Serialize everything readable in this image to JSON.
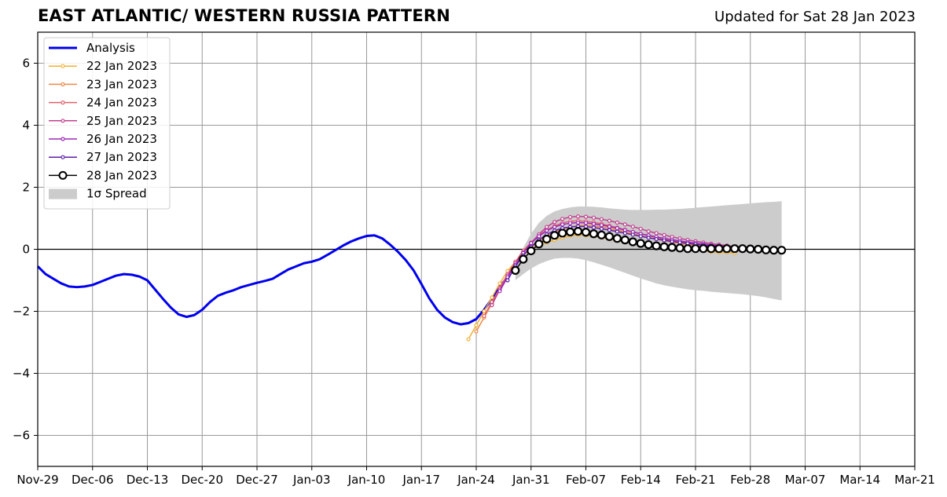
{
  "header": {
    "title": "EAST ATLANTIC/ WESTERN RUSSIA PATTERN",
    "updated": "Updated for Sat 28 Jan 2023"
  },
  "chart_data": {
    "type": "line",
    "title": "EAST ATLANTIC/ WESTERN RUSSIA PATTERN",
    "xlabel": "",
    "ylabel": "",
    "x_unit": "days since Nov-29",
    "xlim": [
      0,
      112
    ],
    "ylim": [
      -7,
      7
    ],
    "grid": true,
    "legend_position": "top-left",
    "x_ticks": [
      {
        "x": 0,
        "label": "Nov-29"
      },
      {
        "x": 7,
        "label": "Dec-06"
      },
      {
        "x": 14,
        "label": "Dec-13"
      },
      {
        "x": 21,
        "label": "Dec-20"
      },
      {
        "x": 28,
        "label": "Dec-27"
      },
      {
        "x": 35,
        "label": "Jan-03"
      },
      {
        "x": 42,
        "label": "Jan-10"
      },
      {
        "x": 49,
        "label": "Jan-17"
      },
      {
        "x": 56,
        "label": "Jan-24"
      },
      {
        "x": 63,
        "label": "Jan-31"
      },
      {
        "x": 70,
        "label": "Feb-07"
      },
      {
        "x": 77,
        "label": "Feb-14"
      },
      {
        "x": 84,
        "label": "Feb-21"
      },
      {
        "x": 91,
        "label": "Feb-28"
      },
      {
        "x": 98,
        "label": "Mar-07"
      },
      {
        "x": 105,
        "label": "Mar-14"
      },
      {
        "x": 112,
        "label": "Mar-21"
      }
    ],
    "y_ticks": [
      {
        "y": -6,
        "label": "−6"
      },
      {
        "y": -4,
        "label": "−4"
      },
      {
        "y": -2,
        "label": "−2"
      },
      {
        "y": 0,
        "label": "0"
      },
      {
        "y": 2,
        "label": "2"
      },
      {
        "y": 4,
        "label": "4"
      },
      {
        "y": 6,
        "label": "6"
      }
    ],
    "analysis": {
      "name": "Analysis",
      "color": "#0000ee",
      "x": [
        0,
        1,
        2,
        3,
        4,
        5,
        6,
        7,
        8,
        9,
        10,
        11,
        12,
        13,
        14,
        15,
        16,
        17,
        18,
        19,
        20,
        21,
        22,
        23,
        24,
        25,
        26,
        27,
        28,
        29,
        30,
        31,
        32,
        33,
        34,
        35,
        36,
        37,
        38,
        39,
        40,
        41,
        42,
        43,
        44,
        45,
        46,
        47,
        48,
        49,
        50,
        51,
        52,
        53,
        54,
        55,
        56,
        57,
        58,
        59,
        60
      ],
      "y": [
        -0.55,
        -0.8,
        -0.95,
        -1.1,
        -1.2,
        -1.22,
        -1.2,
        -1.15,
        -1.05,
        -0.95,
        -0.85,
        -0.8,
        -0.82,
        -0.88,
        -1.0,
        -1.3,
        -1.6,
        -1.88,
        -2.1,
        -2.18,
        -2.12,
        -1.95,
        -1.7,
        -1.5,
        -1.4,
        -1.32,
        -1.22,
        -1.15,
        -1.08,
        -1.02,
        -0.95,
        -0.8,
        -0.65,
        -0.55,
        -0.45,
        -0.4,
        -0.32,
        -0.18,
        -0.03,
        0.12,
        0.25,
        0.35,
        0.43,
        0.45,
        0.35,
        0.15,
        -0.08,
        -0.35,
        -0.68,
        -1.12,
        -1.58,
        -1.95,
        -2.2,
        -2.35,
        -2.42,
        -2.38,
        -2.25,
        -1.95,
        -1.6,
        -1.2,
        -0.9
      ]
    },
    "forecasts": [
      {
        "name": "22 Jan 2023",
        "color": "#f2b135",
        "x": [
          55,
          56,
          57,
          58,
          59,
          60,
          61,
          62,
          63,
          64,
          65,
          66,
          67,
          68,
          69,
          70,
          71,
          72,
          73,
          74,
          75,
          76,
          77,
          78,
          79,
          80,
          81,
          82,
          83,
          84,
          85,
          86,
          87,
          88,
          89
        ],
        "y": [
          -2.9,
          -2.45,
          -2.0,
          -1.55,
          -1.1,
          -0.7,
          -0.4,
          -0.18,
          -0.02,
          0.12,
          0.22,
          0.3,
          0.38,
          0.44,
          0.46,
          0.45,
          0.42,
          0.38,
          0.33,
          0.28,
          0.24,
          0.2,
          0.16,
          0.12,
          0.09,
          0.06,
          0.04,
          0.02,
          0.0,
          -0.02,
          -0.05,
          -0.08,
          -0.1,
          -0.1,
          -0.12
        ]
      },
      {
        "name": "23 Jan 2023",
        "color": "#ee8844",
        "x": [
          56,
          57,
          58,
          59,
          60,
          61,
          62,
          63,
          64,
          65,
          66,
          67,
          68,
          69,
          70,
          71,
          72,
          73,
          74,
          75,
          76,
          77,
          78,
          79,
          80,
          81,
          82,
          83,
          84,
          85,
          86,
          87,
          88,
          89,
          90
        ],
        "y": [
          -2.65,
          -2.2,
          -1.75,
          -1.3,
          -0.85,
          -0.48,
          -0.2,
          0.05,
          0.25,
          0.42,
          0.55,
          0.65,
          0.72,
          0.76,
          0.77,
          0.75,
          0.72,
          0.67,
          0.62,
          0.56,
          0.5,
          0.44,
          0.38,
          0.33,
          0.28,
          0.23,
          0.19,
          0.15,
          0.12,
          0.08,
          0.05,
          0.03,
          0.0,
          -0.03,
          -0.05
        ]
      },
      {
        "name": "24 Jan 2023",
        "color": "#e0606e",
        "x": [
          57,
          58,
          59,
          60,
          61,
          62,
          63,
          64,
          65,
          66,
          67,
          68,
          69,
          70,
          71,
          72,
          73,
          74,
          75,
          76,
          77,
          78,
          79,
          80,
          81,
          82,
          83,
          84,
          85,
          86,
          87,
          88,
          89,
          90,
          91
        ],
        "y": [
          -2.15,
          -1.7,
          -1.25,
          -0.8,
          -0.4,
          -0.05,
          0.22,
          0.45,
          0.62,
          0.75,
          0.85,
          0.9,
          0.92,
          0.9,
          0.87,
          0.82,
          0.76,
          0.7,
          0.63,
          0.56,
          0.5,
          0.44,
          0.38,
          0.33,
          0.28,
          0.24,
          0.2,
          0.16,
          0.13,
          0.1,
          0.07,
          0.05,
          0.03,
          0.01,
          0.0
        ]
      },
      {
        "name": "25 Jan 2023",
        "color": "#c0408e",
        "x": [
          58,
          59,
          60,
          61,
          62,
          63,
          64,
          65,
          66,
          67,
          68,
          69,
          70,
          71,
          72,
          73,
          74,
          75,
          76,
          77,
          78,
          79,
          80,
          81,
          82,
          83,
          84,
          85,
          86,
          87,
          88,
          89,
          90,
          91,
          92
        ],
        "y": [
          -1.8,
          -1.3,
          -0.85,
          -0.45,
          -0.1,
          0.2,
          0.48,
          0.72,
          0.88,
          0.98,
          1.04,
          1.06,
          1.05,
          1.02,
          0.97,
          0.92,
          0.86,
          0.8,
          0.73,
          0.66,
          0.58,
          0.52,
          0.46,
          0.4,
          0.35,
          0.3,
          0.26,
          0.22,
          0.18,
          0.15,
          0.12,
          0.09,
          0.07,
          0.05,
          0.03
        ]
      },
      {
        "name": "26 Jan 2023",
        "color": "#9e28b4",
        "x": [
          59,
          60,
          61,
          62,
          63,
          64,
          65,
          66,
          67,
          68,
          69,
          70,
          71,
          72,
          73,
          74,
          75,
          76,
          77,
          78,
          79,
          80,
          81,
          82,
          83,
          84,
          85,
          86,
          87,
          88,
          89,
          90,
          91,
          92,
          93
        ],
        "y": [
          -1.35,
          -0.9,
          -0.5,
          -0.12,
          0.2,
          0.42,
          0.6,
          0.72,
          0.8,
          0.84,
          0.86,
          0.85,
          0.82,
          0.78,
          0.73,
          0.68,
          0.62,
          0.56,
          0.5,
          0.45,
          0.4,
          0.35,
          0.31,
          0.27,
          0.23,
          0.2,
          0.17,
          0.14,
          0.12,
          0.1,
          0.08,
          0.06,
          0.05,
          0.04,
          0.03
        ]
      },
      {
        "name": "27 Jan 2023",
        "color": "#5a1ea8",
        "x": [
          60,
          61,
          62,
          63,
          64,
          65,
          66,
          67,
          68,
          69,
          70,
          71,
          72,
          73,
          74,
          75,
          76,
          77,
          78,
          79,
          80,
          81,
          82,
          83,
          84,
          85,
          86,
          87,
          88,
          89,
          90,
          91,
          92,
          93,
          94
        ],
        "y": [
          -1.0,
          -0.55,
          -0.2,
          0.08,
          0.3,
          0.48,
          0.6,
          0.68,
          0.72,
          0.74,
          0.73,
          0.7,
          0.66,
          0.62,
          0.57,
          0.52,
          0.47,
          0.42,
          0.37,
          0.33,
          0.29,
          0.25,
          0.22,
          0.19,
          0.16,
          0.13,
          0.11,
          0.09,
          0.07,
          0.06,
          0.05,
          0.04,
          0.03,
          0.02,
          0.02
        ]
      }
    ],
    "latest": {
      "name": "28 Jan 2023",
      "color": "#000000",
      "x": [
        61,
        62,
        63,
        64,
        65,
        66,
        67,
        68,
        69,
        70,
        71,
        72,
        73,
        74,
        75,
        76,
        77,
        78,
        79,
        80,
        81,
        82,
        83,
        84,
        85,
        86,
        87,
        88,
        89,
        90,
        91,
        92,
        93,
        94,
        95
      ],
      "y": [
        -0.68,
        -0.32,
        -0.05,
        0.17,
        0.33,
        0.45,
        0.52,
        0.56,
        0.58,
        0.55,
        0.5,
        0.46,
        0.41,
        0.35,
        0.3,
        0.24,
        0.19,
        0.15,
        0.11,
        0.08,
        0.06,
        0.04,
        0.02,
        0.02,
        0.02,
        0.02,
        0.02,
        0.02,
        0.02,
        0.02,
        0.01,
        0.0,
        -0.02,
        -0.03,
        -0.03
      ]
    },
    "spread": {
      "name": "1σ Spread",
      "color": "#cccccc",
      "x": [
        61,
        62,
        63,
        64,
        65,
        66,
        67,
        68,
        69,
        70,
        71,
        72,
        73,
        74,
        75,
        76,
        77,
        78,
        79,
        80,
        81,
        82,
        83,
        84,
        85,
        86,
        87,
        88,
        89,
        90,
        91,
        92,
        93,
        94,
        95
      ],
      "upper": [
        -0.4,
        0.05,
        0.5,
        0.85,
        1.08,
        1.22,
        1.3,
        1.35,
        1.38,
        1.38,
        1.37,
        1.35,
        1.32,
        1.3,
        1.28,
        1.27,
        1.27,
        1.27,
        1.28,
        1.28,
        1.29,
        1.3,
        1.32,
        1.34,
        1.36,
        1.38,
        1.4,
        1.42,
        1.44,
        1.46,
        1.48,
        1.5,
        1.52,
        1.53,
        1.55
      ],
      "lower": [
        -1.0,
        -0.8,
        -0.62,
        -0.48,
        -0.38,
        -0.3,
        -0.28,
        -0.28,
        -0.3,
        -0.35,
        -0.42,
        -0.5,
        -0.58,
        -0.67,
        -0.76,
        -0.85,
        -0.94,
        -1.02,
        -1.1,
        -1.16,
        -1.21,
        -1.25,
        -1.29,
        -1.32,
        -1.34,
        -1.37,
        -1.39,
        -1.41,
        -1.43,
        -1.45,
        -1.48,
        -1.51,
        -1.55,
        -1.6,
        -1.65
      ]
    },
    "legend": [
      {
        "label": "Analysis",
        "color": "#0000ee",
        "kind": "thick-line"
      },
      {
        "label": "22 Jan 2023",
        "color": "#f2b135",
        "kind": "marker-line"
      },
      {
        "label": "23 Jan 2023",
        "color": "#ee8844",
        "kind": "marker-line"
      },
      {
        "label": "24 Jan 2023",
        "color": "#e0606e",
        "kind": "marker-line"
      },
      {
        "label": "25 Jan 2023",
        "color": "#c0408e",
        "kind": "marker-line"
      },
      {
        "label": "26 Jan 2023",
        "color": "#9e28b4",
        "kind": "marker-line"
      },
      {
        "label": "27 Jan 2023",
        "color": "#5a1ea8",
        "kind": "marker-line"
      },
      {
        "label": "28 Jan 2023",
        "color": "#000000",
        "kind": "big-marker-line"
      },
      {
        "label": "1σ Spread",
        "color": "#cccccc",
        "kind": "patch"
      }
    ]
  }
}
